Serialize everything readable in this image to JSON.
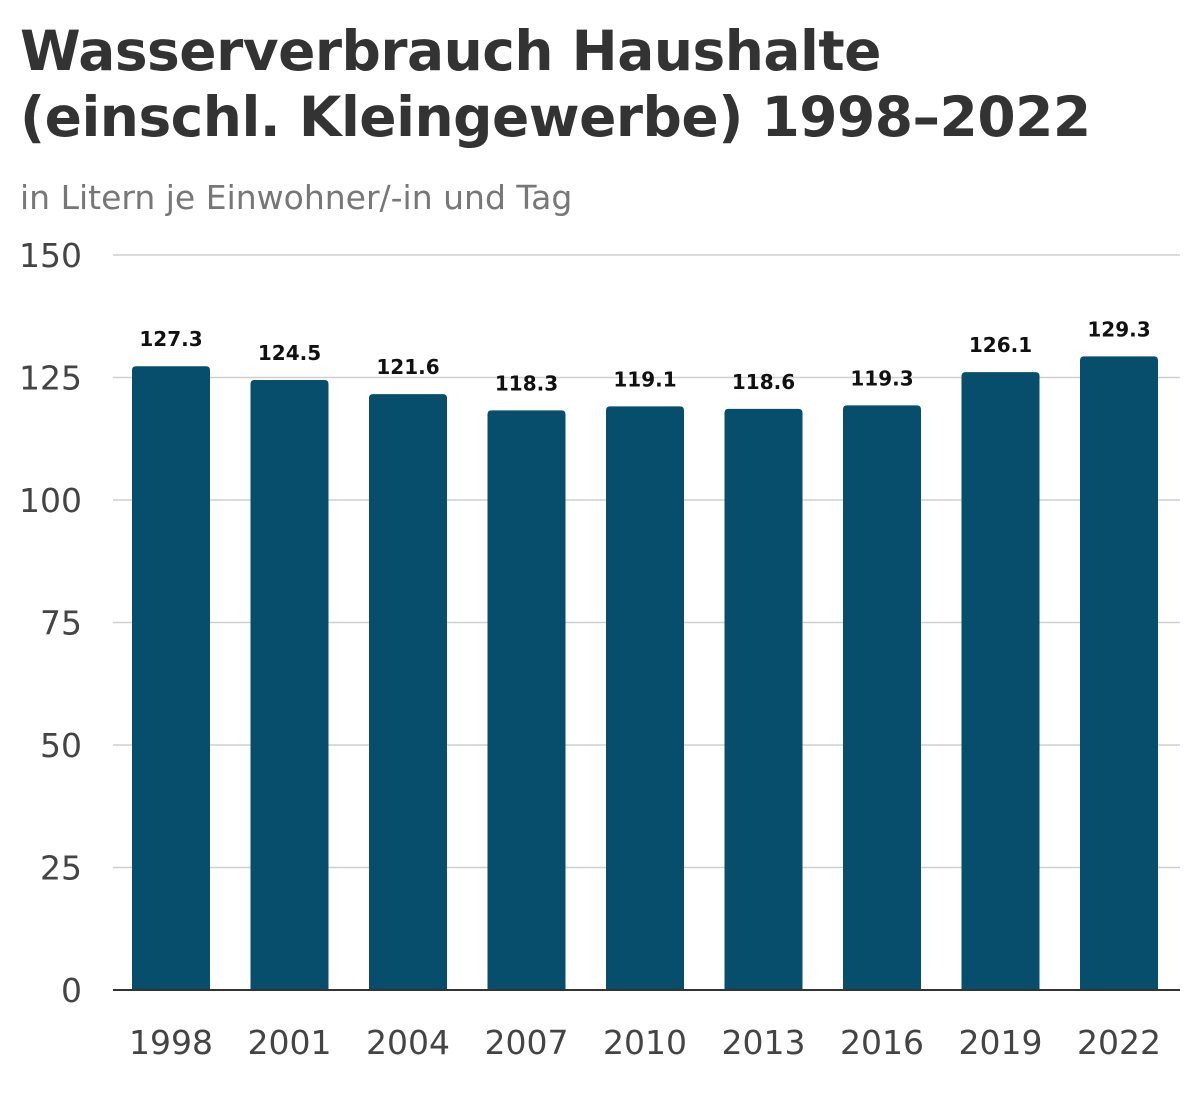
{
  "chart_data": {
    "type": "bar",
    "title_line1": "Wasserverbrauch Haushalte",
    "title_line2": "(einschl. Kleingewerbe) 1998–2022",
    "subtitle": "in Litern je Einwohner/-in und Tag",
    "categories": [
      "1998",
      "2001",
      "2004",
      "2007",
      "2010",
      "2013",
      "2016",
      "2019",
      "2022"
    ],
    "values": [
      127.3,
      124.5,
      121.6,
      118.3,
      119.1,
      118.6,
      119.3,
      126.1,
      129.3
    ],
    "value_labels": [
      "127.3",
      "124.5",
      "121.6",
      "118.3",
      "119.1",
      "118.6",
      "119.3",
      "126.1",
      "129.3"
    ],
    "yticks": [
      "0",
      "25",
      "50",
      "75",
      "100",
      "125",
      "150"
    ],
    "ylim": [
      0,
      150
    ],
    "grid": true,
    "bar_color": "#074d6c"
  }
}
